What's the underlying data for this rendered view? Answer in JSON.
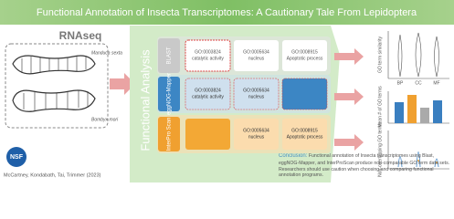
{
  "header": {
    "title": "Functional Annotation of Insecta Transcriptomes: A Cautionary Tale From Lepidoptera"
  },
  "input": {
    "label": "RNAseq",
    "species": [
      "Manduca sexta",
      "Bombyx mori"
    ]
  },
  "analysis": {
    "label": "Functional Analysis",
    "tools": [
      {
        "name": "BLAST",
        "cells": [
          {
            "id": "GO:0003824",
            "term": "catalytic activity"
          },
          {
            "id": "GO:0005634",
            "term": "nucleus"
          },
          {
            "id": "GO:0008915",
            "term": "Apoptotic process"
          }
        ]
      },
      {
        "name": "eggNOG-Mapper",
        "cells": [
          {
            "id": "GO:0003824",
            "term": "catalytic activity"
          },
          {
            "id": "GO:0005634",
            "term": "nucleus"
          },
          null
        ]
      },
      {
        "name": "InterPro Scan",
        "cells": [
          null,
          {
            "id": "GO:0005634",
            "term": "nucleus"
          },
          {
            "id": "GO:0008915",
            "term": "Apoptotic process"
          }
        ]
      }
    ]
  },
  "results": {
    "axis_labels": [
      "GO term similarity",
      "Mean # of GO terms",
      "Non-overlapping GO terms"
    ],
    "categories": [
      "BP",
      "CC",
      "MF"
    ]
  },
  "footer": {
    "logo": "NSF",
    "citation": "McCartney, Kondabath, Tai, Trimmer (2023)",
    "conclusion_label": "Conclusion:",
    "conclusion": "Functional annotation of Insecta transcriptomes using Blast, eggNOG-Mapper, and InterProScan produce non-comparable GO term data sets. Researchers should use caution when choosing and comparing functional annotation programs."
  }
}
